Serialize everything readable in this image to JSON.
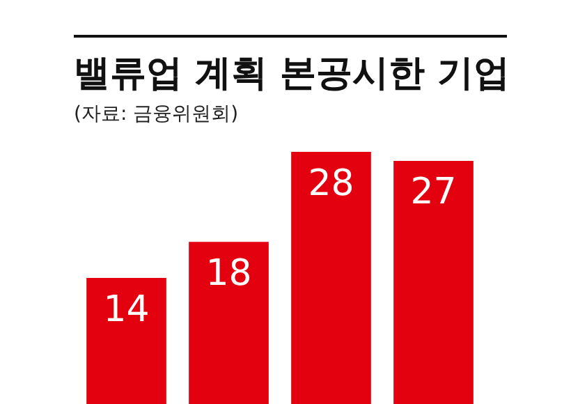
{
  "chart_data": {
    "type": "bar",
    "title": "밸류업 계획 본공시한 기업",
    "subtitle": "(자료: 금융위원회)",
    "categories": [
      null,
      null,
      null,
      null
    ],
    "values": [
      14,
      18,
      28,
      27
    ],
    "color": "#e3000f",
    "data_labels": true
  }
}
